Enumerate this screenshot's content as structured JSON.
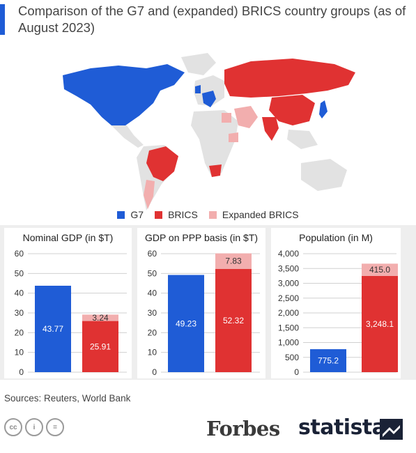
{
  "title": "Comparison of the G7 and (expanded) BRICS country groups (as of August 2023)",
  "colors": {
    "g7": "#1f5cd6",
    "brics": "#e03232",
    "expanded": "#f2aeae",
    "map_grey": "#e2e2e2",
    "title_bar": "#1f5cd6"
  },
  "legend": [
    {
      "label": "G7",
      "color": "#1f5cd6"
    },
    {
      "label": "BRICS",
      "color": "#e03232"
    },
    {
      "label": "Expanded BRICS",
      "color": "#f2aeae"
    }
  ],
  "map_icon": "world-map",
  "chart_data": [
    {
      "type": "bar",
      "title": "Nominal GDP (in $T)",
      "categories": [
        "G7",
        "BRICS"
      ],
      "series": [
        {
          "name": "G7",
          "values": [
            43.77,
            null
          ]
        },
        {
          "name": "BRICS",
          "values": [
            null,
            25.91
          ]
        },
        {
          "name": "Expanded BRICS",
          "values": [
            null,
            3.24
          ]
        }
      ],
      "value_labels": [
        "43.77",
        "25.91",
        "3.24"
      ],
      "ylim": [
        0,
        60
      ],
      "yticks": [
        "0",
        "10",
        "20",
        "30",
        "40",
        "50",
        "60"
      ],
      "grid": true
    },
    {
      "type": "bar",
      "title": "GDP on PPP basis (in $T)",
      "categories": [
        "G7",
        "BRICS"
      ],
      "series": [
        {
          "name": "G7",
          "values": [
            49.23,
            null
          ]
        },
        {
          "name": "BRICS",
          "values": [
            null,
            52.32
          ]
        },
        {
          "name": "Expanded BRICS",
          "values": [
            null,
            7.83
          ]
        }
      ],
      "value_labels": [
        "49.23",
        "52.32",
        "7.83"
      ],
      "ylim": [
        0,
        60
      ],
      "yticks": [
        "0",
        "10",
        "20",
        "30",
        "40",
        "50",
        "60"
      ],
      "grid": true
    },
    {
      "type": "bar",
      "title": "Population (in M)",
      "categories": [
        "G7",
        "BRICS"
      ],
      "series": [
        {
          "name": "G7",
          "values": [
            775.2,
            null
          ]
        },
        {
          "name": "BRICS",
          "values": [
            null,
            3248.1
          ]
        },
        {
          "name": "Expanded BRICS",
          "values": [
            null,
            415.0
          ]
        }
      ],
      "value_labels": [
        "775.2",
        "3,248.1",
        "415.0"
      ],
      "ylim": [
        0,
        4000
      ],
      "yticks": [
        "0",
        "500",
        "1,000",
        "1,500",
        "2,000",
        "2,500",
        "3,000",
        "3,500",
        "4,000"
      ],
      "grid": true
    }
  ],
  "sources": "Sources: Reuters, World Bank",
  "license_icons": [
    {
      "name": "cc-icon",
      "glyph": "cc"
    },
    {
      "name": "attribution-icon",
      "glyph": "i"
    },
    {
      "name": "no-derivatives-icon",
      "glyph": "="
    }
  ],
  "brands": {
    "forbes": "Forbes",
    "statista": "statista"
  }
}
